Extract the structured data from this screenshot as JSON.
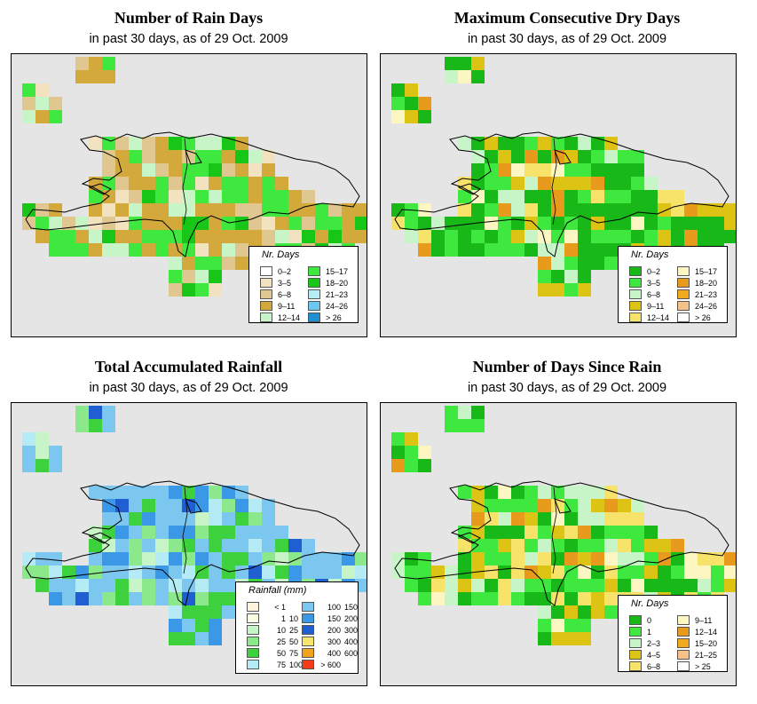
{
  "colors": {
    "map_background": "#e5e5e5",
    "coastline": "#000000"
  },
  "panels": [
    {
      "title": "Number of Rain Days",
      "subtitle": "in past 30 days, as of  29 Oct. 2009",
      "legend": {
        "title": "Nr. Days",
        "items": [
          {
            "label": "0–2",
            "color": "#ffffff"
          },
          {
            "label": "3–5",
            "color": "#f2e2c0"
          },
          {
            "label": "6–8",
            "color": "#e0c78f"
          },
          {
            "label": "9–11",
            "color": "#d2a93a"
          },
          {
            "label": "12–14",
            "color": "#c8f5c8"
          },
          {
            "label": "15–17",
            "color": "#3ee83e"
          },
          {
            "label": "18–20",
            "color": "#17c617"
          },
          {
            "label": "21–23",
            "color": "#b7ecf5"
          },
          {
            "label": "24–26",
            "color": "#6cc8ee"
          },
          {
            "label": "> 26",
            "color": "#1e8fd0"
          }
        ]
      }
    },
    {
      "title": "Maximum Consecutive Dry Days",
      "subtitle": "in past 30 days, as of  29 Oct. 2009",
      "legend": {
        "title": "Nr. Days",
        "items": [
          {
            "label": "0–2",
            "color": "#17b817"
          },
          {
            "label": "3–5",
            "color": "#3ee83e"
          },
          {
            "label": "6–8",
            "color": "#c8f5c8"
          },
          {
            "label": "9–11",
            "color": "#ddc414"
          },
          {
            "label": "12–14",
            "color": "#f8e36a"
          },
          {
            "label": "15–17",
            "color": "#fcf6c3"
          },
          {
            "label": "18–20",
            "color": "#e89a1c"
          },
          {
            "label": "21–23",
            "color": "#f2a91e"
          },
          {
            "label": "24–26",
            "color": "#f6c08b"
          },
          {
            "label": "> 26",
            "color": "#ffffff"
          }
        ]
      }
    },
    {
      "title": "Total Accumulated Rainfall",
      "subtitle": "in past 30 days, as of  29 Oct. 2009",
      "legend": {
        "title": "Rainfall (mm)",
        "items": [
          {
            "lo": "< 1",
            "hi": "",
            "color": "#fdf3dc"
          },
          {
            "lo": "1",
            "hi": "10",
            "color": "#fbfbe3"
          },
          {
            "lo": "10",
            "hi": "25",
            "color": "#c8f5c8"
          },
          {
            "lo": "25",
            "hi": "50",
            "color": "#8be88b"
          },
          {
            "lo": "50",
            "hi": "75",
            "color": "#3ed13e"
          },
          {
            "lo": "75",
            "hi": "100",
            "color": "#b5ebf5"
          },
          {
            "lo": "100",
            "hi": "150",
            "color": "#7cc7f0"
          },
          {
            "lo": "150",
            "hi": "200",
            "color": "#3a98e6"
          },
          {
            "lo": "200",
            "hi": "300",
            "color": "#1f5fd1"
          },
          {
            "lo": "300",
            "hi": "400",
            "color": "#f5e56a"
          },
          {
            "lo": "400",
            "hi": "600",
            "color": "#f2a31e"
          },
          {
            "lo": "> 600",
            "hi": "",
            "color": "#f53a1a"
          }
        ]
      }
    },
    {
      "title": "Number of Days Since Rain",
      "subtitle": "in past 30 days, as of  29 Oct. 2009",
      "legend": {
        "title": "Nr. Days",
        "items": [
          {
            "label": "0",
            "color": "#17b817"
          },
          {
            "label": "1",
            "color": "#3ee83e"
          },
          {
            "label": "2–3",
            "color": "#c8f5c8"
          },
          {
            "label": "4–5",
            "color": "#ddc414"
          },
          {
            "label": "6–8",
            "color": "#f8e36a"
          },
          {
            "label": "9–11",
            "color": "#fcf6c3"
          },
          {
            "label": "12–14",
            "color": "#e89a1c"
          },
          {
            "label": "15–20",
            "color": "#f2a91e"
          },
          {
            "label": "21–25",
            "color": "#f6c08b"
          },
          {
            "label": "> 25",
            "color": "#ffffff"
          }
        ]
      }
    }
  ]
}
